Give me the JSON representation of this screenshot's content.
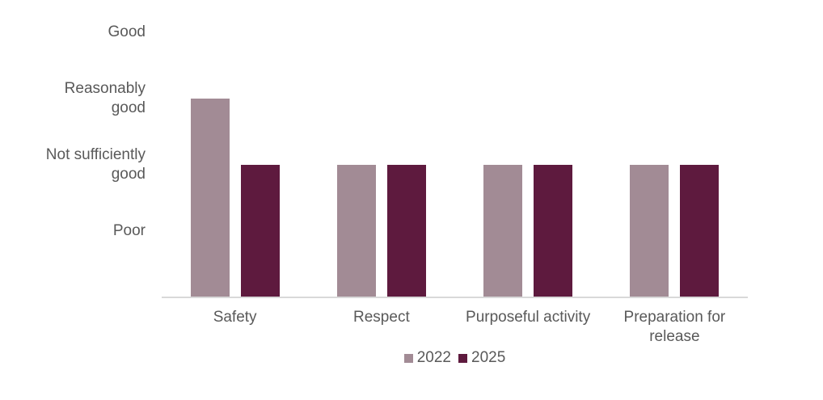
{
  "chart_data": {
    "type": "bar",
    "title": "",
    "categories": [
      "Safety",
      "Respect",
      "Purposeful activity",
      "Preparation for release"
    ],
    "series": [
      {
        "name": "2022",
        "color": "#A28B95",
        "values": [
          3,
          2,
          2,
          2
        ]
      },
      {
        "name": "2025",
        "color": "#5E1A3E",
        "values": [
          2,
          2,
          2,
          2
        ]
      }
    ],
    "value_axis": {
      "tick_labels": [
        "Poor",
        "Not sufficiently good",
        "Reasonably good",
        "Good"
      ],
      "tick_values": [
        1,
        2,
        3,
        4
      ],
      "range": [
        0,
        4
      ],
      "grid": false
    },
    "legend": {
      "position": "bottom",
      "entries": [
        "2022",
        "2025"
      ]
    },
    "colors": {
      "text": "#595959",
      "axis_line": "#D9D9D9",
      "background": "#FFFFFF"
    }
  }
}
